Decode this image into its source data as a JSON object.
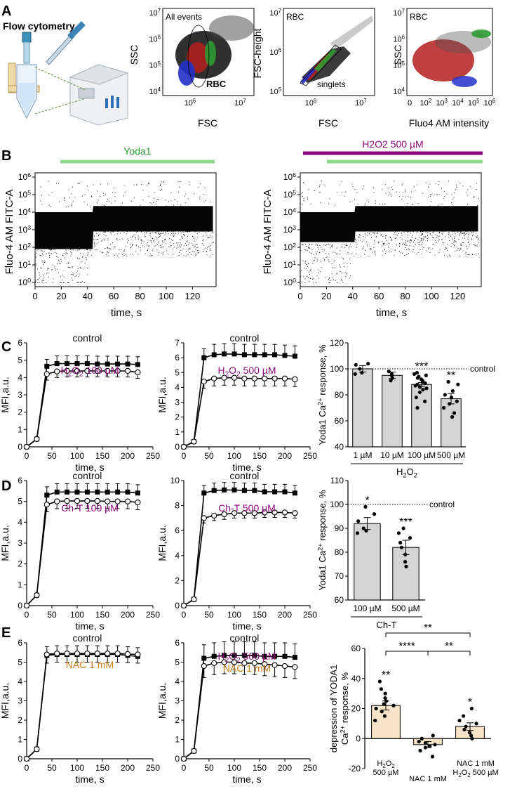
{
  "panels": {
    "A": {
      "letter": "A",
      "title": "Flow cytometry",
      "plots": [
        {
          "label": "All events",
          "xlabel": "FSC",
          "ylabel": "SSC",
          "xticks": [
            "10^6",
            "10^7"
          ],
          "yticks": [
            "10^7",
            "10^6",
            "10^5",
            "10^4"
          ],
          "gate": "RBC"
        },
        {
          "label": "RBC",
          "xlabel": "FSC",
          "ylabel": "FSC-height",
          "xticks": [
            "10^6",
            "10^7"
          ],
          "yticks": [
            "10^7",
            "10^6",
            "10^5"
          ],
          "gate": "singlets"
        },
        {
          "label": "RBC",
          "xlabel": "Fluo4 AM intensity",
          "ylabel": "SSC",
          "xticks": [
            "0",
            "10^2",
            "10^3",
            "10^4",
            "10^5",
            "10^6"
          ],
          "yticks": [
            "10^7",
            "10^6",
            "10^5",
            "10^4"
          ]
        }
      ]
    },
    "B": {
      "letter": "B",
      "left": {
        "bar1": "Yoda1",
        "ylabel": "Fluo-4 AM FITC-A",
        "xlabel": "time, s"
      },
      "right": {
        "bar1": "H2O2 500 µM",
        "ylabel": "Fluo-4 AM FITC-A",
        "xlabel": "time, s"
      },
      "xticks": [
        "0",
        "20",
        "40",
        "60",
        "80",
        "100",
        "120"
      ],
      "yticks": [
        "10^6",
        "10^5",
        "10^4",
        "10^3",
        "10^2",
        "10^1",
        "10^0"
      ]
    },
    "C": {
      "letter": "C"
    },
    "D": {
      "letter": "D"
    },
    "E": {
      "letter": "E"
    }
  },
  "colors": {
    "green": "#8fd98f",
    "purple": "#8b0a7d",
    "orange": "#c87a1a",
    "bar_gray": "#d4d4d4",
    "bar_tan": "#f6e3c7",
    "red": "#c0392b",
    "blue": "#2a3ecf"
  },
  "chart_data": [
    {
      "id": "C1",
      "type": "line",
      "xlabel": "time, s",
      "ylabel": "MFI,a.u.",
      "xlim": [
        0,
        250
      ],
      "ylim": [
        0,
        6
      ],
      "xticks": [
        0,
        50,
        100,
        150,
        200,
        250
      ],
      "yticks": [
        0,
        1,
        2,
        3,
        4,
        5,
        6
      ],
      "annotations": [
        {
          "text": "control",
          "color": "#111"
        },
        {
          "text": "H2O2 100 µM",
          "color": "#8b0a7d"
        }
      ],
      "series": [
        {
          "name": "control",
          "marker": "square",
          "x": [
            0,
            20,
            40,
            60,
            80,
            100,
            120,
            140,
            160,
            180,
            200,
            220
          ],
          "y": [
            0,
            0.45,
            4.65,
            4.8,
            4.8,
            4.8,
            4.8,
            4.78,
            4.78,
            4.78,
            4.78,
            4.75
          ],
          "err": [
            0,
            0.05,
            0.4,
            0.45,
            0.45,
            0.45,
            0.45,
            0.45,
            0.45,
            0.45,
            0.45,
            0.45
          ]
        },
        {
          "name": "H2O2 100 µM",
          "marker": "circle",
          "x": [
            0,
            20,
            40,
            60,
            80,
            100,
            120,
            140,
            160,
            180,
            200,
            220
          ],
          "y": [
            0,
            0.45,
            4.2,
            4.35,
            4.38,
            4.38,
            4.38,
            4.38,
            4.38,
            4.38,
            4.38,
            4.3
          ],
          "err": [
            0,
            0.05,
            0.35,
            0.35,
            0.35,
            0.35,
            0.35,
            0.35,
            0.35,
            0.35,
            0.35,
            0.35
          ]
        }
      ]
    },
    {
      "id": "C2",
      "type": "line",
      "xlabel": "time, s",
      "ylabel": "MFI,a.u.",
      "xlim": [
        0,
        250
      ],
      "ylim": [
        0,
        7
      ],
      "xticks": [
        0,
        50,
        100,
        150,
        200,
        250
      ],
      "yticks": [
        0,
        1,
        2,
        3,
        4,
        5,
        6,
        7
      ],
      "annotations": [
        {
          "text": "control",
          "color": "#111"
        },
        {
          "text": "H2O2 500 µM",
          "color": "#8b0a7d"
        }
      ],
      "series": [
        {
          "name": "control",
          "marker": "square",
          "x": [
            0,
            20,
            40,
            60,
            80,
            100,
            120,
            140,
            160,
            180,
            200,
            220
          ],
          "y": [
            0,
            0.35,
            6.0,
            6.2,
            6.25,
            6.25,
            6.2,
            6.2,
            6.2,
            6.2,
            6.15,
            6.1
          ],
          "err": [
            0,
            0.05,
            0.6,
            0.7,
            0.7,
            0.7,
            0.7,
            0.7,
            0.7,
            0.7,
            0.7,
            0.7
          ]
        },
        {
          "name": "H2O2 500 µM",
          "marker": "circle",
          "x": [
            0,
            20,
            40,
            60,
            80,
            100,
            120,
            140,
            160,
            180,
            200,
            220
          ],
          "y": [
            0,
            0.35,
            4.4,
            4.6,
            4.65,
            4.65,
            4.6,
            4.6,
            4.6,
            4.6,
            4.6,
            4.55
          ],
          "err": [
            0,
            0.05,
            0.45,
            0.5,
            0.5,
            0.5,
            0.5,
            0.5,
            0.5,
            0.5,
            0.5,
            0.5
          ]
        }
      ]
    },
    {
      "id": "C3",
      "type": "bar",
      "ylabel": "Yoda1 Ca2+ response, %",
      "ylim": [
        40,
        120
      ],
      "yticks": [
        40,
        60,
        80,
        100,
        120
      ],
      "refline": 100,
      "refline_label": "control",
      "categories": [
        "1 µM",
        "10 µM",
        "100 µM",
        "500 µM"
      ],
      "group_label": "H2O2",
      "values": [
        100,
        95,
        88,
        77
      ],
      "err": [
        2.5,
        2.5,
        1.5,
        4
      ],
      "significance": [
        "",
        "",
        "***",
        "**"
      ],
      "points": [
        [
          96,
          97,
          100,
          103,
          104
        ],
        [
          91,
          93,
          95,
          96,
          98
        ],
        [
          70,
          75,
          78,
          82,
          84,
          85,
          86,
          87,
          88,
          89,
          90,
          91,
          92,
          93,
          94,
          95,
          96,
          97
        ],
        [
          63,
          66,
          70,
          73,
          75,
          78,
          80,
          83,
          88,
          90
        ]
      ]
    },
    {
      "id": "D1",
      "type": "line",
      "xlabel": "time, s",
      "ylabel": "MFI,a.u.",
      "xlim": [
        0,
        250
      ],
      "ylim": [
        0,
        6
      ],
      "xticks": [
        0,
        50,
        100,
        150,
        200,
        250
      ],
      "yticks": [
        0,
        1,
        2,
        3,
        4,
        5,
        6
      ],
      "annotations": [
        {
          "text": "control",
          "color": "#111"
        },
        {
          "text": "Ch-T 100 µM",
          "color": "#8b0a7d"
        }
      ],
      "series": [
        {
          "name": "control",
          "marker": "square",
          "x": [
            0,
            20,
            40,
            60,
            80,
            100,
            120,
            140,
            160,
            180,
            200,
            220
          ],
          "y": [
            0,
            0.5,
            5.3,
            5.45,
            5.45,
            5.45,
            5.45,
            5.45,
            5.45,
            5.45,
            5.45,
            5.4
          ],
          "err": [
            0,
            0.05,
            0.4,
            0.4,
            0.4,
            0.4,
            0.4,
            0.4,
            0.4,
            0.4,
            0.4,
            0.4
          ]
        },
        {
          "name": "Ch-T 100 µM",
          "marker": "circle",
          "x": [
            0,
            20,
            40,
            60,
            80,
            100,
            120,
            140,
            160,
            180,
            200,
            220
          ],
          "y": [
            0,
            0.5,
            4.85,
            5.0,
            5.02,
            5.02,
            5.02,
            5.02,
            5.0,
            5.0,
            5.0,
            4.95
          ],
          "err": [
            0,
            0.05,
            0.35,
            0.35,
            0.35,
            0.35,
            0.35,
            0.35,
            0.35,
            0.35,
            0.35,
            0.35
          ]
        }
      ]
    },
    {
      "id": "D2",
      "type": "line",
      "xlabel": "time, s",
      "ylabel": "MFI,a.u.",
      "xlim": [
        0,
        250
      ],
      "ylim": [
        0,
        10
      ],
      "xticks": [
        0,
        50,
        100,
        150,
        200,
        250
      ],
      "yticks": [
        0,
        2,
        4,
        6,
        8,
        10
      ],
      "annotations": [
        {
          "text": "control",
          "color": "#111"
        },
        {
          "text": "Ch-T 500 µM",
          "color": "#8b0a7d"
        }
      ],
      "series": [
        {
          "name": "control",
          "marker": "square",
          "x": [
            0,
            20,
            40,
            60,
            80,
            100,
            120,
            140,
            160,
            180,
            200,
            220
          ],
          "y": [
            0,
            0.5,
            9.0,
            9.2,
            9.25,
            9.25,
            9.2,
            9.2,
            9.1,
            9.1,
            9.1,
            9.0
          ],
          "err": [
            0,
            0.05,
            0.6,
            0.6,
            0.6,
            0.6,
            0.6,
            0.6,
            0.6,
            0.6,
            0.6,
            0.6
          ]
        },
        {
          "name": "Ch-T 500 µM",
          "marker": "circle",
          "x": [
            0,
            20,
            40,
            60,
            80,
            100,
            120,
            140,
            160,
            180,
            200,
            220
          ],
          "y": [
            0,
            0.5,
            7.0,
            7.2,
            7.3,
            7.4,
            7.4,
            7.4,
            7.45,
            7.45,
            7.45,
            7.4
          ],
          "err": [
            0,
            0.05,
            0.4,
            0.4,
            0.4,
            0.4,
            0.4,
            0.4,
            0.4,
            0.4,
            0.4,
            0.4
          ]
        }
      ]
    },
    {
      "id": "D3",
      "type": "bar",
      "ylabel": "Yoda1 Ca2+ response, %",
      "ylim": [
        60,
        110
      ],
      "yticks": [
        60,
        70,
        80,
        90,
        100,
        110
      ],
      "refline": 100,
      "refline_label": "control",
      "categories": [
        "100 µM",
        "500 µM"
      ],
      "group_label": "Ch-T",
      "values": [
        92,
        82
      ],
      "err": [
        2.5,
        3
      ],
      "significance": [
        "*",
        "***"
      ],
      "points": [
        [
          88,
          89,
          90,
          93,
          96,
          99
        ],
        [
          74,
          76,
          79,
          82,
          84,
          86,
          88,
          90
        ]
      ]
    },
    {
      "id": "E1",
      "type": "line",
      "xlabel": "time, s",
      "ylabel": "MFI,a.u.",
      "xlim": [
        0,
        250
      ],
      "ylim": [
        0,
        6
      ],
      "xticks": [
        0,
        50,
        100,
        150,
        200,
        250
      ],
      "yticks": [
        0,
        1,
        2,
        3,
        4,
        5,
        6
      ],
      "annotations": [
        {
          "text": "control",
          "color": "#111"
        },
        {
          "text": "NAC 1 mM",
          "color": "#c87a1a"
        }
      ],
      "series": [
        {
          "name": "control",
          "marker": "square",
          "x": [
            0,
            20,
            40,
            60,
            80,
            100,
            120,
            140,
            160,
            180,
            200,
            220
          ],
          "y": [
            0,
            0.5,
            5.35,
            5.4,
            5.4,
            5.4,
            5.4,
            5.4,
            5.4,
            5.4,
            5.35,
            5.3
          ],
          "err": [
            0,
            0.05,
            0.45,
            0.45,
            0.45,
            0.45,
            0.45,
            0.45,
            0.45,
            0.45,
            0.45,
            0.45
          ]
        },
        {
          "name": "NAC 1 mM",
          "marker": "circle",
          "x": [
            0,
            20,
            40,
            60,
            80,
            100,
            120,
            140,
            160,
            180,
            200,
            220
          ],
          "y": [
            0,
            0.5,
            5.4,
            5.45,
            5.45,
            5.45,
            5.45,
            5.45,
            5.45,
            5.45,
            5.42,
            5.4
          ],
          "err": [
            0,
            0.05,
            0.45,
            0.45,
            0.45,
            0.45,
            0.45,
            0.45,
            0.45,
            0.45,
            0.45,
            0.45
          ]
        }
      ]
    },
    {
      "id": "E2",
      "type": "line",
      "xlabel": "time, s",
      "ylabel": "MFI,a.u.",
      "xlim": [
        0,
        250
      ],
      "ylim": [
        0,
        6
      ],
      "xticks": [
        0,
        50,
        100,
        150,
        200,
        250
      ],
      "yticks": [
        0,
        1,
        2,
        3,
        4,
        5,
        6
      ],
      "annotations": [
        {
          "text": "control",
          "color": "#111"
        },
        {
          "text": "H2O2 500 µM",
          "color": "#8b0a7d"
        },
        {
          "text": "NAC 1 mM",
          "color": "#c87a1a"
        }
      ],
      "series": [
        {
          "name": "control",
          "marker": "square",
          "x": [
            0,
            20,
            40,
            60,
            80,
            100,
            120,
            140,
            160,
            180,
            200,
            220
          ],
          "y": [
            0,
            0.4,
            5.2,
            5.3,
            5.35,
            5.35,
            5.35,
            5.35,
            5.3,
            5.3,
            5.3,
            5.25
          ],
          "err": [
            0,
            0.05,
            0.7,
            0.7,
            0.7,
            0.7,
            0.7,
            0.7,
            0.7,
            0.7,
            0.7,
            0.7
          ]
        },
        {
          "name": "H2O2 500 µM + NAC 1 mM",
          "marker": "circle",
          "x": [
            0,
            20,
            40,
            60,
            80,
            100,
            120,
            140,
            160,
            180,
            200,
            220
          ],
          "y": [
            0,
            0.4,
            4.8,
            4.95,
            5.0,
            5.0,
            4.95,
            4.95,
            4.9,
            4.85,
            4.8,
            4.75
          ],
          "err": [
            0,
            0.05,
            0.6,
            0.6,
            0.6,
            0.6,
            0.6,
            0.6,
            0.6,
            0.6,
            0.6,
            0.6
          ]
        }
      ]
    },
    {
      "id": "E3",
      "type": "bar",
      "ylabel": "depression of YODA1 Ca2+ response, %",
      "ylim": [
        -20,
        60
      ],
      "yticks": [
        -20,
        0,
        20,
        40,
        60
      ],
      "categories": [
        "H2O2 500 µM",
        "NAC 1 mM",
        "NAC 1 mM H2O2 500 µM"
      ],
      "values": [
        22,
        -4,
        8
      ],
      "err": [
        3,
        2,
        2.5
      ],
      "significance": [
        "**",
        "",
        "*"
      ],
      "brackets": [
        {
          "from": 0,
          "to": 2,
          "label": "**"
        },
        {
          "from": 0,
          "to": 1,
          "label": "****"
        },
        {
          "from": 1,
          "to": 2,
          "label": "**"
        }
      ],
      "points": [
        [
          12,
          15,
          18,
          20,
          22,
          23,
          25,
          27,
          30,
          33,
          38
        ],
        [
          -12,
          -8,
          -6,
          -5,
          -4,
          -3,
          -2,
          0,
          2
        ],
        [
          0,
          2,
          4,
          6,
          8,
          10,
          12,
          15,
          20
        ]
      ]
    }
  ]
}
